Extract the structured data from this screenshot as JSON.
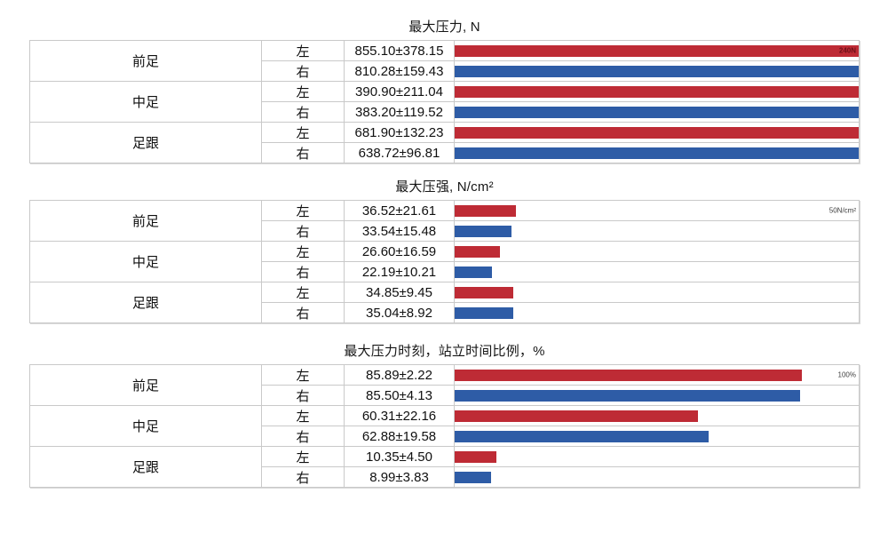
{
  "page": {
    "background": "#ffffff"
  },
  "colors": {
    "left_bar": "#be2b35",
    "right_bar": "#2e5ca6",
    "scale_text_on_bar": "#6d1018",
    "scale_text_plain": "#3d3d3d",
    "table_outer_border": "#9a9a9a",
    "table_inner_border": "#c9c9c9",
    "text": "#101010"
  },
  "charts": [
    {
      "title": "最大压力, N",
      "scale_label": "240N",
      "scale_max_render": 240,
      "groups": [
        {
          "region": "前足",
          "rows": [
            {
              "side": "左",
              "value": "855.10±378.15",
              "pct": 100
            },
            {
              "side": "右",
              "value": "810.28±159.43",
              "pct": 100
            }
          ]
        },
        {
          "region": "中足",
          "rows": [
            {
              "side": "左",
              "value": "390.90±211.04",
              "pct": 100
            },
            {
              "side": "右",
              "value": "383.20±119.52",
              "pct": 100
            }
          ]
        },
        {
          "region": "足跟",
          "rows": [
            {
              "side": "左",
              "value": "681.90±132.23",
              "pct": 100
            },
            {
              "side": "右",
              "value": "638.72±96.81",
              "pct": 100
            }
          ]
        }
      ]
    },
    {
      "title": "最大压强, N/cm²",
      "scale_label": "50N/cm²",
      "scale_max_render": 240,
      "groups": [
        {
          "region": "前足",
          "rows": [
            {
              "side": "左",
              "value": "36.52±21.61",
              "pct": 15.2
            },
            {
              "side": "右",
              "value": "33.54±15.48",
              "pct": 14.0
            }
          ]
        },
        {
          "region": "中足",
          "rows": [
            {
              "side": "左",
              "value": "26.60±16.59",
              "pct": 11.1
            },
            {
              "side": "右",
              "value": "22.19±10.21",
              "pct": 9.2
            }
          ]
        },
        {
          "region": "足跟",
          "rows": [
            {
              "side": "左",
              "value": "34.85±9.45",
              "pct": 14.5
            },
            {
              "side": "右",
              "value": "35.04±8.92",
              "pct": 14.6
            }
          ]
        }
      ]
    },
    {
      "title": "最大压力时刻，站立时间比例，%",
      "scale_label": "100%",
      "scale_max_render": 100,
      "groups": [
        {
          "region": "前足",
          "rows": [
            {
              "side": "左",
              "value": "85.89±2.22",
              "pct": 85.9
            },
            {
              "side": "右",
              "value": "85.50±4.13",
              "pct": 85.5
            }
          ]
        },
        {
          "region": "中足",
          "rows": [
            {
              "side": "左",
              "value": "60.31±22.16",
              "pct": 60.3
            },
            {
              "side": "右",
              "value": "62.88±19.58",
              "pct": 62.9
            }
          ]
        },
        {
          "region": "足跟",
          "rows": [
            {
              "side": "左",
              "value": "10.35±4.50",
              "pct": 10.4
            },
            {
              "side": "右",
              "value": "8.99±3.83",
              "pct": 9.0
            }
          ]
        }
      ]
    }
  ],
  "chart_data": [
    {
      "type": "bar",
      "orientation": "horizontal",
      "title": "最大压力, N",
      "unit": "N",
      "axis_scale_label": "240N",
      "axis_render_max": 240,
      "categories": [
        "前足 左",
        "前足 右",
        "中足 左",
        "中足 右",
        "足跟 左",
        "足跟 右"
      ],
      "series": [
        {
          "name": "mean",
          "values": [
            855.1,
            810.28,
            390.9,
            383.2,
            681.9,
            638.72
          ]
        },
        {
          "name": "sd",
          "values": [
            378.15,
            159.43,
            211.04,
            119.52,
            132.23,
            96.81
          ]
        }
      ],
      "bar_color_left_foot": "#be2b35",
      "bar_color_right_foot": "#2e5ca6",
      "grid": false,
      "note": "all bars clipped at axis maximum"
    },
    {
      "type": "bar",
      "orientation": "horizontal",
      "title": "最大压强, N/cm²",
      "unit": "N/cm²",
      "axis_scale_label": "50N/cm²",
      "axis_render_max": 240,
      "categories": [
        "前足 左",
        "前足 右",
        "中足 左",
        "中足 右",
        "足跟 左",
        "足跟 右"
      ],
      "series": [
        {
          "name": "mean",
          "values": [
            36.52,
            33.54,
            26.6,
            22.19,
            34.85,
            35.04
          ]
        },
        {
          "name": "sd",
          "values": [
            21.61,
            15.48,
            16.59,
            10.21,
            9.45,
            8.92
          ]
        }
      ],
      "bar_color_left_foot": "#be2b35",
      "bar_color_right_foot": "#2e5ca6",
      "grid": false
    },
    {
      "type": "bar",
      "orientation": "horizontal",
      "title": "最大压力时刻，站立时间比例，%",
      "unit": "%",
      "axis_scale_label": "100%",
      "axis_render_max": 100,
      "categories": [
        "前足 左",
        "前足 右",
        "中足 左",
        "中足 右",
        "足跟 左",
        "足跟 右"
      ],
      "series": [
        {
          "name": "mean",
          "values": [
            85.89,
            85.5,
            60.31,
            62.88,
            10.35,
            8.99
          ]
        },
        {
          "name": "sd",
          "values": [
            2.22,
            4.13,
            22.16,
            19.58,
            4.5,
            3.83
          ]
        }
      ],
      "bar_color_left_foot": "#be2b35",
      "bar_color_right_foot": "#2e5ca6",
      "grid": false
    }
  ]
}
